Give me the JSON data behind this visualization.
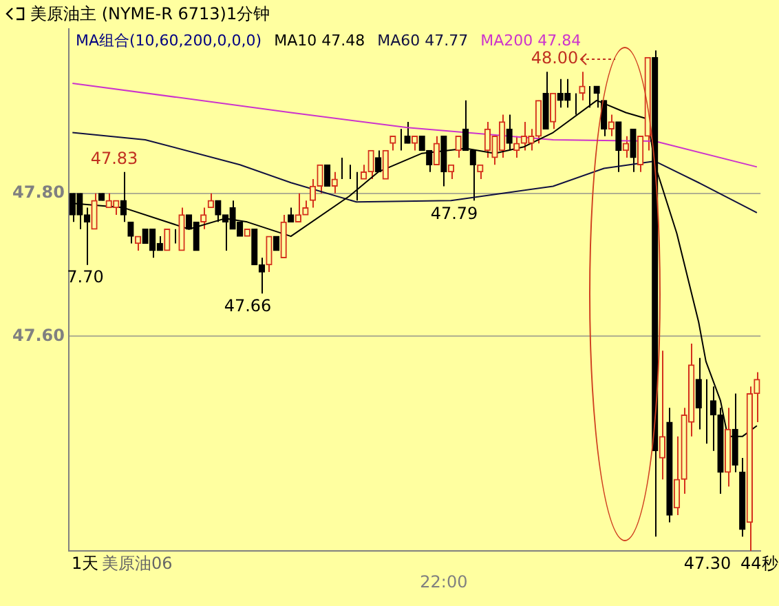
{
  "chart_data": {
    "type": "candlestick",
    "title": "美原油主 (NYME-R 6713)1分钟",
    "legend_title": "MA组合(10,60,200,0,0,0)",
    "legend": "top",
    "grid": "y",
    "categories": [
      null,
      null,
      null,
      null,
      null,
      null,
      null,
      null,
      null,
      null,
      null,
      null,
      null,
      null,
      null,
      null,
      null,
      null,
      null,
      null,
      null,
      null,
      null,
      null,
      null,
      null,
      null,
      null,
      null,
      null,
      null,
      null,
      null,
      null,
      null,
      null,
      null,
      null,
      null,
      null,
      null,
      null,
      null,
      null,
      null,
      null,
      null,
      null,
      null,
      null,
      null,
      "22:00",
      null,
      null,
      null,
      null,
      null,
      null,
      null,
      null,
      null,
      null,
      null,
      null,
      null,
      null,
      null,
      null,
      null,
      null,
      null,
      null,
      null,
      null,
      null,
      null,
      null,
      null,
      null,
      null,
      null,
      null,
      null,
      null,
      null,
      null,
      null,
      null,
      null,
      null,
      null,
      null,
      null,
      null,
      null
    ],
    "ohlc": [
      [
        47.8,
        47.8,
        47.76,
        47.77
      ],
      [
        47.8,
        47.8,
        47.75,
        47.77
      ],
      [
        47.77,
        47.78,
        47.7,
        47.76
      ],
      [
        47.75,
        47.8,
        47.75,
        47.79
      ],
      [
        47.8,
        47.8,
        47.79,
        47.79
      ],
      [
        47.78,
        47.8,
        47.78,
        47.79
      ],
      [
        47.78,
        47.79,
        47.77,
        47.79
      ],
      [
        47.79,
        47.83,
        47.76,
        47.77
      ],
      [
        47.76,
        47.76,
        47.73,
        47.74
      ],
      [
        47.73,
        47.74,
        47.72,
        47.74
      ],
      [
        47.75,
        47.75,
        47.73,
        47.73
      ],
      [
        47.75,
        47.75,
        47.71,
        47.72
      ],
      [
        47.73,
        47.74,
        47.72,
        47.72
      ],
      [
        47.72,
        47.75,
        47.72,
        47.75
      ],
      [
        47.74,
        47.75,
        47.73,
        47.74
      ],
      [
        47.72,
        47.78,
        47.72,
        47.77
      ],
      [
        47.77,
        47.77,
        47.75,
        47.75
      ],
      [
        47.76,
        47.76,
        47.72,
        47.72
      ],
      [
        47.76,
        47.78,
        47.75,
        47.77
      ],
      [
        47.78,
        47.8,
        47.78,
        47.79
      ],
      [
        47.79,
        47.79,
        47.76,
        47.77
      ],
      [
        47.77,
        47.77,
        47.72,
        47.76
      ],
      [
        47.78,
        47.79,
        47.75,
        47.75
      ],
      [
        47.76,
        47.76,
        47.74,
        47.74
      ],
      [
        47.74,
        47.75,
        47.74,
        47.75
      ],
      [
        47.75,
        47.75,
        47.7,
        47.7
      ],
      [
        47.7,
        47.71,
        47.66,
        47.69
      ],
      [
        47.7,
        47.74,
        47.69,
        47.74
      ],
      [
        47.74,
        47.74,
        47.72,
        47.72
      ],
      [
        47.71,
        47.77,
        47.71,
        47.76
      ],
      [
        47.77,
        47.78,
        47.76,
        47.76
      ],
      [
        47.76,
        47.8,
        47.76,
        47.77
      ],
      [
        47.77,
        47.79,
        47.77,
        47.78
      ],
      [
        47.79,
        47.82,
        47.78,
        47.81
      ],
      [
        47.81,
        47.84,
        47.8,
        47.84
      ],
      [
        47.84,
        47.84,
        47.81,
        47.81
      ],
      [
        47.81,
        47.83,
        47.8,
        47.82
      ],
      [
        47.83,
        47.85,
        47.82,
        47.83
      ],
      [
        47.83,
        47.84,
        47.82,
        47.83
      ],
      [
        47.82,
        47.83,
        47.79,
        47.82
      ],
      [
        47.82,
        47.84,
        47.82,
        47.83
      ],
      [
        47.83,
        47.86,
        47.82,
        47.86
      ],
      [
        47.85,
        47.86,
        47.83,
        47.83
      ],
      [
        47.82,
        47.86,
        47.82,
        47.86
      ],
      [
        47.87,
        47.88,
        47.86,
        47.88
      ],
      [
        47.88,
        47.89,
        47.86,
        47.88
      ],
      [
        47.88,
        47.9,
        47.87,
        47.87
      ],
      [
        47.87,
        47.88,
        47.86,
        47.88
      ],
      [
        47.88,
        47.88,
        47.86,
        47.86
      ],
      [
        47.86,
        47.86,
        47.83,
        47.84
      ],
      [
        47.84,
        47.88,
        47.84,
        47.87
      ],
      [
        47.88,
        47.88,
        47.81,
        47.83
      ],
      [
        47.83,
        47.84,
        47.82,
        47.84
      ],
      [
        47.86,
        47.88,
        47.85,
        47.88
      ],
      [
        47.89,
        47.93,
        47.86,
        47.86
      ],
      [
        47.86,
        47.86,
        47.79,
        47.84
      ],
      [
        47.83,
        47.84,
        47.82,
        47.84
      ],
      [
        47.86,
        47.9,
        47.85,
        47.89
      ],
      [
        47.85,
        47.88,
        47.84,
        47.88
      ],
      [
        47.86,
        47.91,
        47.85,
        47.9
      ],
      [
        47.89,
        47.91,
        47.86,
        47.87
      ],
      [
        47.86,
        47.88,
        47.85,
        47.87
      ],
      [
        47.87,
        47.9,
        47.86,
        47.88
      ],
      [
        47.87,
        47.89,
        47.86,
        47.88
      ],
      [
        47.88,
        47.93,
        47.87,
        47.93
      ],
      [
        47.94,
        47.97,
        47.89,
        47.89
      ],
      [
        47.9,
        47.94,
        47.89,
        47.94
      ],
      [
        47.94,
        47.96,
        47.92,
        47.93
      ],
      [
        47.94,
        47.96,
        47.92,
        47.93
      ],
      [
        47.93,
        47.94,
        47.91,
        47.93
      ],
      [
        47.94,
        47.97,
        47.93,
        47.95
      ],
      [
        47.94,
        47.95,
        47.92,
        47.94
      ],
      [
        47.95,
        47.95,
        47.92,
        47.94
      ],
      [
        47.93,
        47.93,
        47.88,
        47.89
      ],
      [
        47.89,
        47.91,
        47.88,
        47.9
      ],
      [
        47.9,
        47.9,
        47.83,
        47.86
      ],
      [
        47.86,
        47.88,
        47.85,
        47.87
      ],
      [
        47.89,
        47.89,
        47.83,
        47.85
      ],
      [
        47.84,
        47.88,
        47.83,
        47.88
      ],
      [
        47.88,
        47.99,
        47.86,
        47.99
      ],
      [
        47.99,
        48.0,
        47.32,
        47.44
      ],
      [
        47.43,
        47.58,
        47.4,
        47.46
      ],
      [
        47.48,
        47.5,
        47.34,
        47.35
      ],
      [
        47.36,
        47.46,
        47.35,
        47.4
      ],
      [
        47.4,
        47.5,
        47.38,
        47.49
      ],
      [
        47.48,
        47.59,
        47.46,
        47.56
      ],
      [
        47.54,
        47.57,
        47.47,
        47.5
      ],
      [
        47.5,
        47.54,
        47.45,
        47.5
      ],
      [
        47.51,
        47.53,
        47.44,
        47.49
      ],
      [
        47.49,
        47.5,
        47.38,
        47.41
      ],
      [
        47.41,
        47.5,
        47.39,
        47.47
      ],
      [
        47.47,
        47.52,
        47.41,
        47.42
      ],
      [
        47.41,
        47.43,
        47.32,
        47.33
      ],
      [
        47.34,
        47.53,
        47.3,
        47.52
      ],
      [
        47.52,
        47.55,
        47.48,
        47.54
      ]
    ],
    "colors": [
      "#000000",
      "#000000",
      "#000000",
      "#d4301c",
      "#000000",
      "#d4301c",
      "#d4301c",
      "#000000",
      "#000000",
      "#d4301c",
      "#000000",
      "#000000",
      "#000000",
      "#d4301c",
      "#000000",
      "#d4301c",
      "#000000",
      "#000000",
      "#d4301c",
      "#d4301c",
      "#000000",
      "#000000",
      "#000000",
      "#000000",
      "#d4301c",
      "#000000",
      "#000000",
      "#d4301c",
      "#000000",
      "#d4301c",
      "#000000",
      "#d4301c",
      "#d4301c",
      "#d4301c",
      "#d4301c",
      "#000000",
      "#d4301c",
      "#000000",
      "#000000",
      "#000000",
      "#d4301c",
      "#d4301c",
      "#000000",
      "#d4301c",
      "#d4301c",
      "#000000",
      "#000000",
      "#d4301c",
      "#000000",
      "#000000",
      "#d4301c",
      "#000000",
      "#d4301c",
      "#d4301c",
      "#000000",
      "#000000",
      "#d4301c",
      "#d4301c",
      "#d4301c",
      "#d4301c",
      "#000000",
      "#d4301c",
      "#d4301c",
      "#d4301c",
      "#d4301c",
      "#000000",
      "#d4301c",
      "#000000",
      "#000000",
      "#000000",
      "#d4301c",
      "#000000",
      "#000000",
      "#000000",
      "#d4301c",
      "#000000",
      "#d4301c",
      "#000000",
      "#d4301c",
      "#d4301c",
      "#000000",
      "#d4301c",
      "#000000",
      "#d4301c",
      "#d4301c",
      "#d4301c",
      "#000000",
      "#000000",
      "#000000",
      "#000000",
      "#d4301c",
      "#000000",
      "#000000",
      "#d4301c",
      "#d4301c"
    ],
    "series": [
      {
        "name": "MA10 47.48",
        "type": "line",
        "color": "#000000",
        "values": [
          47.786,
          null,
          null,
          null,
          null,
          null,
          null,
          47.78,
          null,
          null,
          null,
          null,
          null,
          null,
          null,
          null,
          47.75,
          null,
          null,
          null,
          null,
          47.765,
          null,
          null,
          47.76,
          null,
          null,
          null,
          null,
          null,
          47.74,
          null,
          null,
          null,
          null,
          null,
          null,
          null,
          47.796,
          null,
          null,
          null,
          47.83,
          null,
          null,
          null,
          null,
          null,
          47.856,
          null,
          null,
          null,
          null,
          null,
          47.863,
          null,
          null,
          null,
          47.856,
          null,
          null,
          null,
          47.865,
          null,
          null,
          null,
          47.885,
          null,
          null,
          null,
          null,
          null,
          47.93,
          null,
          null,
          null,
          47.913,
          null,
          null,
          47.904,
          47.84,
          null,
          null,
          47.744,
          null,
          null,
          47.62,
          47.565,
          null,
          47.51,
          47.46,
          null,
          47.46,
          null,
          47.475
        ]
      },
      {
        "name": "MA60 47.77",
        "type": "line",
        "color": "#101040",
        "values": [
          47.885,
          null,
          null,
          null,
          null,
          null,
          null,
          null,
          null,
          null,
          47.875,
          null,
          null,
          null,
          null,
          null,
          null,
          null,
          null,
          null,
          null,
          null,
          null,
          47.84,
          null,
          null,
          null,
          null,
          null,
          null,
          47.815,
          null,
          null,
          null,
          null,
          null,
          null,
          null,
          null,
          47.788,
          null,
          null,
          null,
          null,
          null,
          null,
          null,
          null,
          null,
          null,
          null,
          null,
          47.79,
          null,
          null,
          null,
          null,
          null,
          null,
          null,
          null,
          null,
          null,
          null,
          null,
          null,
          47.81,
          null,
          null,
          null,
          null,
          null,
          null,
          47.835,
          null,
          null,
          null,
          null,
          null,
          null,
          47.845,
          null,
          null,
          null,
          null,
          null,
          47.815,
          null,
          null,
          null,
          null,
          null,
          null,
          null,
          47.773
        ]
      },
      {
        "name": "MA200 47.84",
        "type": "line",
        "color": "#cc33cc",
        "values": [
          47.954,
          null,
          null,
          null,
          null,
          null,
          null,
          null,
          null,
          null,
          null,
          null,
          null,
          null,
          null,
          null,
          null,
          null,
          null,
          null,
          null,
          null,
          null,
          null,
          null,
          null,
          null,
          null,
          null,
          null,
          47.913,
          null,
          null,
          null,
          null,
          null,
          null,
          null,
          null,
          null,
          null,
          null,
          null,
          null,
          null,
          null,
          47.892,
          null,
          null,
          null,
          null,
          null,
          null,
          null,
          null,
          null,
          null,
          null,
          null,
          null,
          null,
          null,
          null,
          null,
          null,
          null,
          47.875,
          null,
          null,
          null,
          null,
          null,
          null,
          null,
          null,
          null,
          null,
          null,
          null,
          null,
          47.873,
          null,
          null,
          null,
          null,
          null,
          null,
          null,
          null,
          null,
          null,
          null,
          null,
          null,
          47.837
        ]
      }
    ],
    "ylim": [
      47.3,
      48.03
    ],
    "yticks": [
      {
        "value": 47.6,
        "label": "47.60"
      },
      {
        "value": 47.8,
        "label": "47.80"
      }
    ],
    "annotations": [
      "47.83",
      "7.70",
      "47.66",
      "47.79",
      "48.00",
      "47.30",
      "1天",
      "美原油06",
      "44秒"
    ]
  }
}
